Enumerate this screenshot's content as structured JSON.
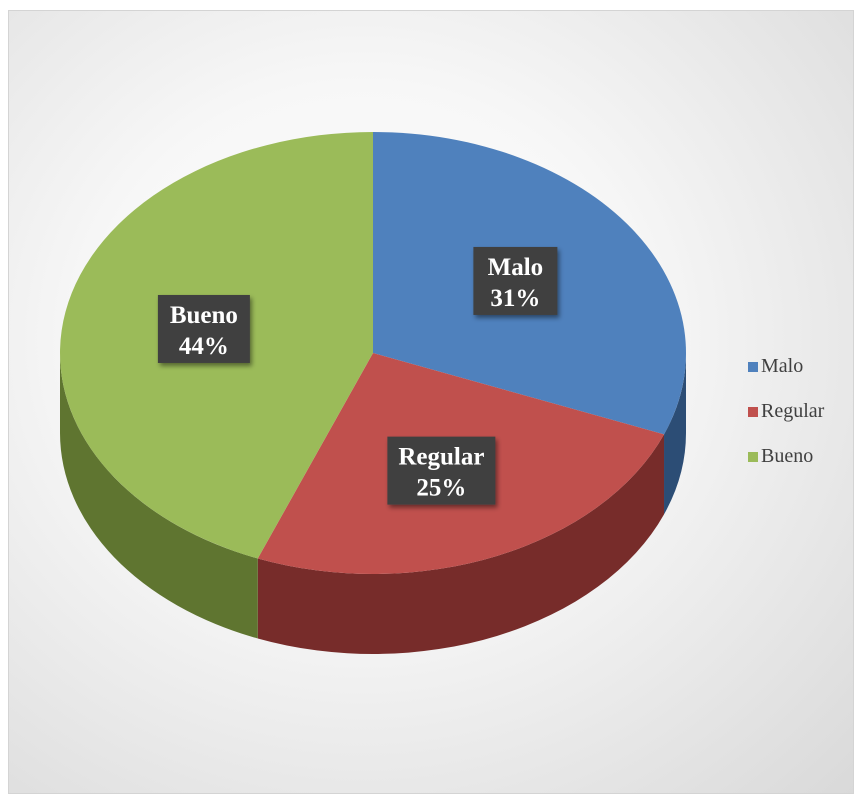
{
  "chart_data": {
    "type": "pie",
    "title": "",
    "categories": [
      "Malo",
      "Regular",
      "Bueno"
    ],
    "values": [
      31,
      25,
      44
    ],
    "value_labels": [
      "31%",
      "25%",
      "44%"
    ],
    "colors": [
      "#4f81bd",
      "#c0504d",
      "#9bbb59"
    ],
    "side_colors": [
      "#2c4d75",
      "#772c2a",
      "#5f7530"
    ],
    "style": "3d",
    "legend": {
      "position": "right",
      "entries": [
        "Malo",
        "Regular",
        "Bueno"
      ]
    }
  }
}
